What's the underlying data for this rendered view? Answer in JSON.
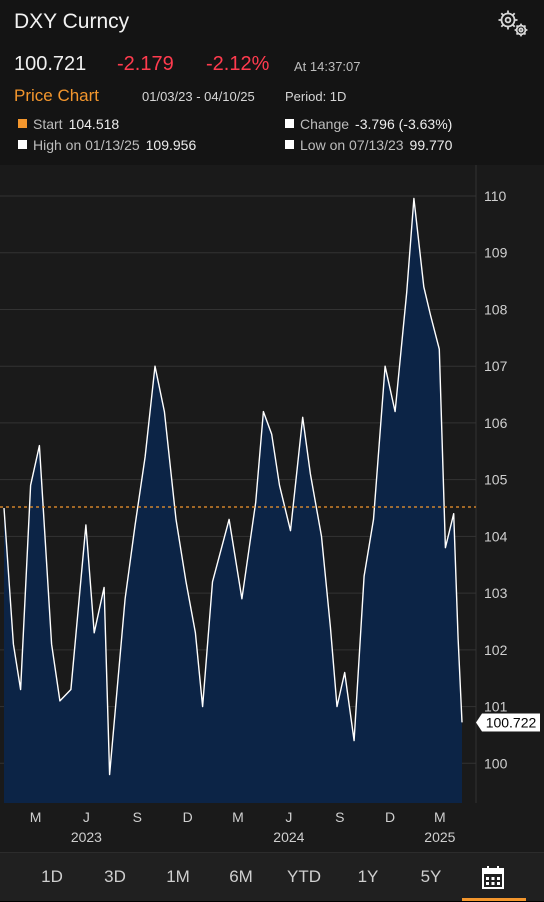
{
  "header": {
    "title": "DXY Curncy",
    "price": "100.721",
    "change": "-2.179",
    "change_pct": "-2.12%",
    "as_of": "At 14:37:07",
    "chart_label": "Price Chart",
    "date_range": "01/03/23 - 04/10/25",
    "period": "Period: 1D",
    "icons": [
      "settings-gears-icon"
    ]
  },
  "stats": {
    "start_label": "Start",
    "start_value": "104.518",
    "change_label": "Change",
    "change_value": "-3.796 (-3.63%)",
    "high_label": "High on 01/13/25",
    "high_value": "109.956",
    "low_label": "Low on 07/13/23",
    "low_value": "99.770",
    "start_color": "#f3962d",
    "marker_color": "#ffffff"
  },
  "tabs": [
    "1D",
    "3D",
    "1M",
    "6M",
    "YTD",
    "1Y",
    "5Y"
  ],
  "colors": {
    "accent": "#f3962d",
    "negative": "#ff3b4e",
    "area_fill": "#0c2446",
    "line": "#ffffff"
  },
  "chart_data": {
    "type": "area",
    "x": [
      "2023-01-03",
      "2023-01-20",
      "2023-02-02",
      "2023-02-20",
      "2023-03-08",
      "2023-03-30",
      "2023-04-14",
      "2023-05-04",
      "2023-05-31",
      "2023-06-15",
      "2023-07-03",
      "2023-07-13",
      "2023-08-10",
      "2023-08-28",
      "2023-09-15",
      "2023-10-03",
      "2023-10-20",
      "2023-11-10",
      "2023-11-28",
      "2023-12-15",
      "2023-12-28",
      "2024-01-15",
      "2024-02-14",
      "2024-03-08",
      "2024-04-02",
      "2024-04-16",
      "2024-05-01",
      "2024-05-15",
      "2024-06-04",
      "2024-06-26",
      "2024-07-10",
      "2024-07-30",
      "2024-08-15",
      "2024-08-27",
      "2024-09-10",
      "2024-09-27",
      "2024-10-15",
      "2024-11-01",
      "2024-11-22",
      "2024-12-10",
      "2024-12-31",
      "2025-01-13",
      "2025-01-31",
      "2025-02-12",
      "2025-02-28",
      "2025-03-11",
      "2025-03-26",
      "2025-04-03",
      "2025-04-10"
    ],
    "y": [
      104.5,
      102.1,
      101.3,
      104.9,
      105.6,
      102.1,
      101.1,
      101.3,
      104.2,
      102.3,
      103.1,
      99.8,
      102.9,
      104.2,
      105.4,
      107.0,
      106.2,
      104.3,
      103.2,
      102.3,
      101.0,
      103.2,
      104.3,
      102.9,
      104.6,
      106.2,
      105.8,
      104.9,
      104.1,
      106.1,
      105.1,
      104.0,
      102.4,
      101.0,
      101.6,
      100.4,
      103.3,
      104.3,
      107.0,
      106.2,
      108.3,
      109.956,
      108.4,
      107.9,
      107.3,
      103.8,
      104.4,
      102.2,
      100.72
    ],
    "xlabel": "",
    "ylabel": "",
    "ylim": [
      99.3,
      110.3
    ],
    "y_ticks": [
      "100",
      "101",
      "102",
      "103",
      "104",
      "105",
      "106",
      "107",
      "108",
      "109",
      "110"
    ],
    "x_tick_months": [
      {
        "label": "M",
        "date": "2023-03-01"
      },
      {
        "label": "J",
        "date": "2023-06-01"
      },
      {
        "label": "S",
        "date": "2023-09-01"
      },
      {
        "label": "D",
        "date": "2023-12-01"
      },
      {
        "label": "M",
        "date": "2024-03-01"
      },
      {
        "label": "J",
        "date": "2024-06-01"
      },
      {
        "label": "S",
        "date": "2024-09-01"
      },
      {
        "label": "D",
        "date": "2024-12-01"
      },
      {
        "label": "M",
        "date": "2025-03-01"
      }
    ],
    "x_tick_years": [
      {
        "label": "2023",
        "date": "2023-06-01"
      },
      {
        "label": "2024",
        "date": "2024-06-01"
      },
      {
        "label": "2025",
        "date": "2025-03-01"
      }
    ],
    "reference_line": 104.518,
    "last_value_label": "100.722",
    "grid": true
  }
}
